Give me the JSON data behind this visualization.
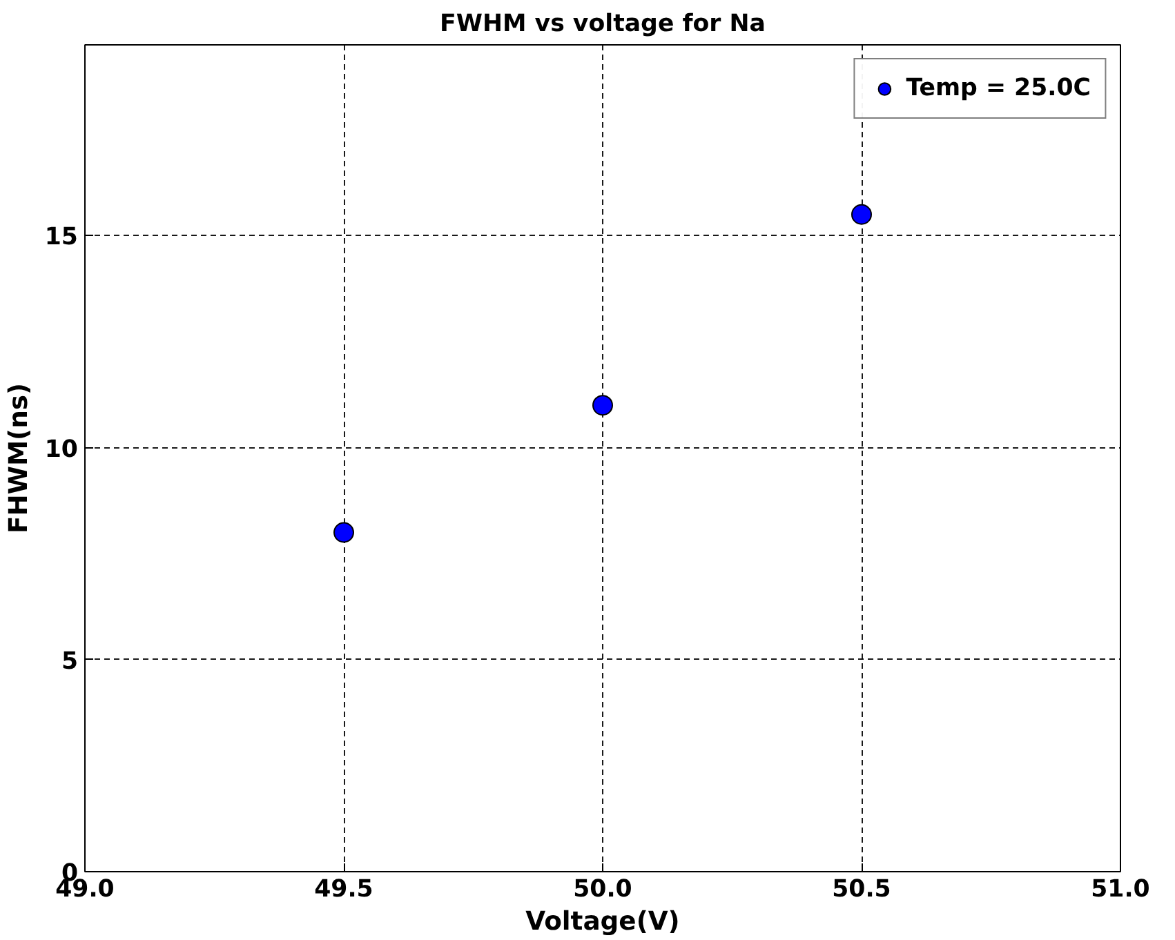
{
  "chart_data": {
    "type": "scatter",
    "title": "FWHM vs voltage for Na",
    "xlabel": "Voltage(V)",
    "ylabel": "FHWM(ns)",
    "x": [
      49.5,
      50.0,
      50.5
    ],
    "series": [
      {
        "name": "Temp = 25.0C",
        "color": "#0000ff",
        "values": [
          8.0,
          11.0,
          15.5
        ]
      }
    ],
    "xlim": [
      49.0,
      51.0
    ],
    "ylim": [
      0,
      19.5
    ],
    "xticks": [
      {
        "value": 49.0,
        "label": "49.0"
      },
      49.5,
      {
        "value": 50.0,
        "label": "50.0"
      },
      50.5,
      {
        "value": 51.0,
        "label": "51.0"
      }
    ],
    "yticks": [
      0,
      5,
      10,
      15
    ],
    "grid": true,
    "legend": "top right",
    "marker": "circle"
  }
}
